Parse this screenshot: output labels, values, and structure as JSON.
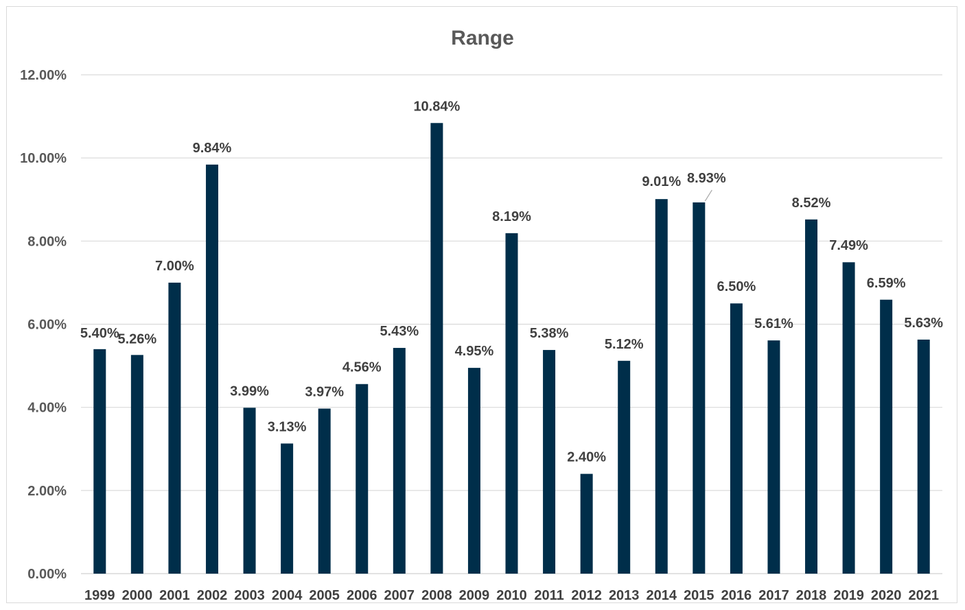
{
  "chart_data": {
    "type": "bar",
    "title": "Range",
    "xlabel": "",
    "ylabel": "",
    "categories": [
      "1999",
      "2000",
      "2001",
      "2002",
      "2003",
      "2004",
      "2005",
      "2006",
      "2007",
      "2008",
      "2009",
      "2010",
      "2011",
      "2012",
      "2013",
      "2014",
      "2015",
      "2016",
      "2017",
      "2018",
      "2019",
      "2020",
      "2021"
    ],
    "values": [
      5.4,
      5.26,
      7.0,
      9.84,
      3.99,
      3.13,
      3.97,
      4.56,
      5.43,
      10.84,
      4.95,
      8.19,
      5.38,
      2.4,
      5.12,
      9.01,
      8.93,
      6.5,
      5.61,
      8.52,
      7.49,
      6.59,
      5.63
    ],
    "data_labels": [
      "5.40%",
      "5.26%",
      "7.00%",
      "9.84%",
      "3.99%",
      "3.13%",
      "3.97%",
      "4.56%",
      "5.43%",
      "10.84%",
      "4.95%",
      "8.19%",
      "5.38%",
      "2.40%",
      "5.12%",
      "9.01%",
      "8.93%",
      "6.50%",
      "5.61%",
      "8.52%",
      "7.49%",
      "6.59%",
      "5.63%"
    ],
    "ylim": [
      0,
      12
    ],
    "yticks": [
      0,
      2,
      4,
      6,
      8,
      10,
      12
    ],
    "ytick_labels": [
      "0.00%",
      "2.00%",
      "4.00%",
      "6.00%",
      "8.00%",
      "10.00%",
      "12.00%"
    ],
    "grid": true,
    "legend": "none",
    "colors": {
      "bar": "#002e4a",
      "gridline": "#d9d9d9",
      "title": "#595959",
      "label": "#404040"
    }
  }
}
